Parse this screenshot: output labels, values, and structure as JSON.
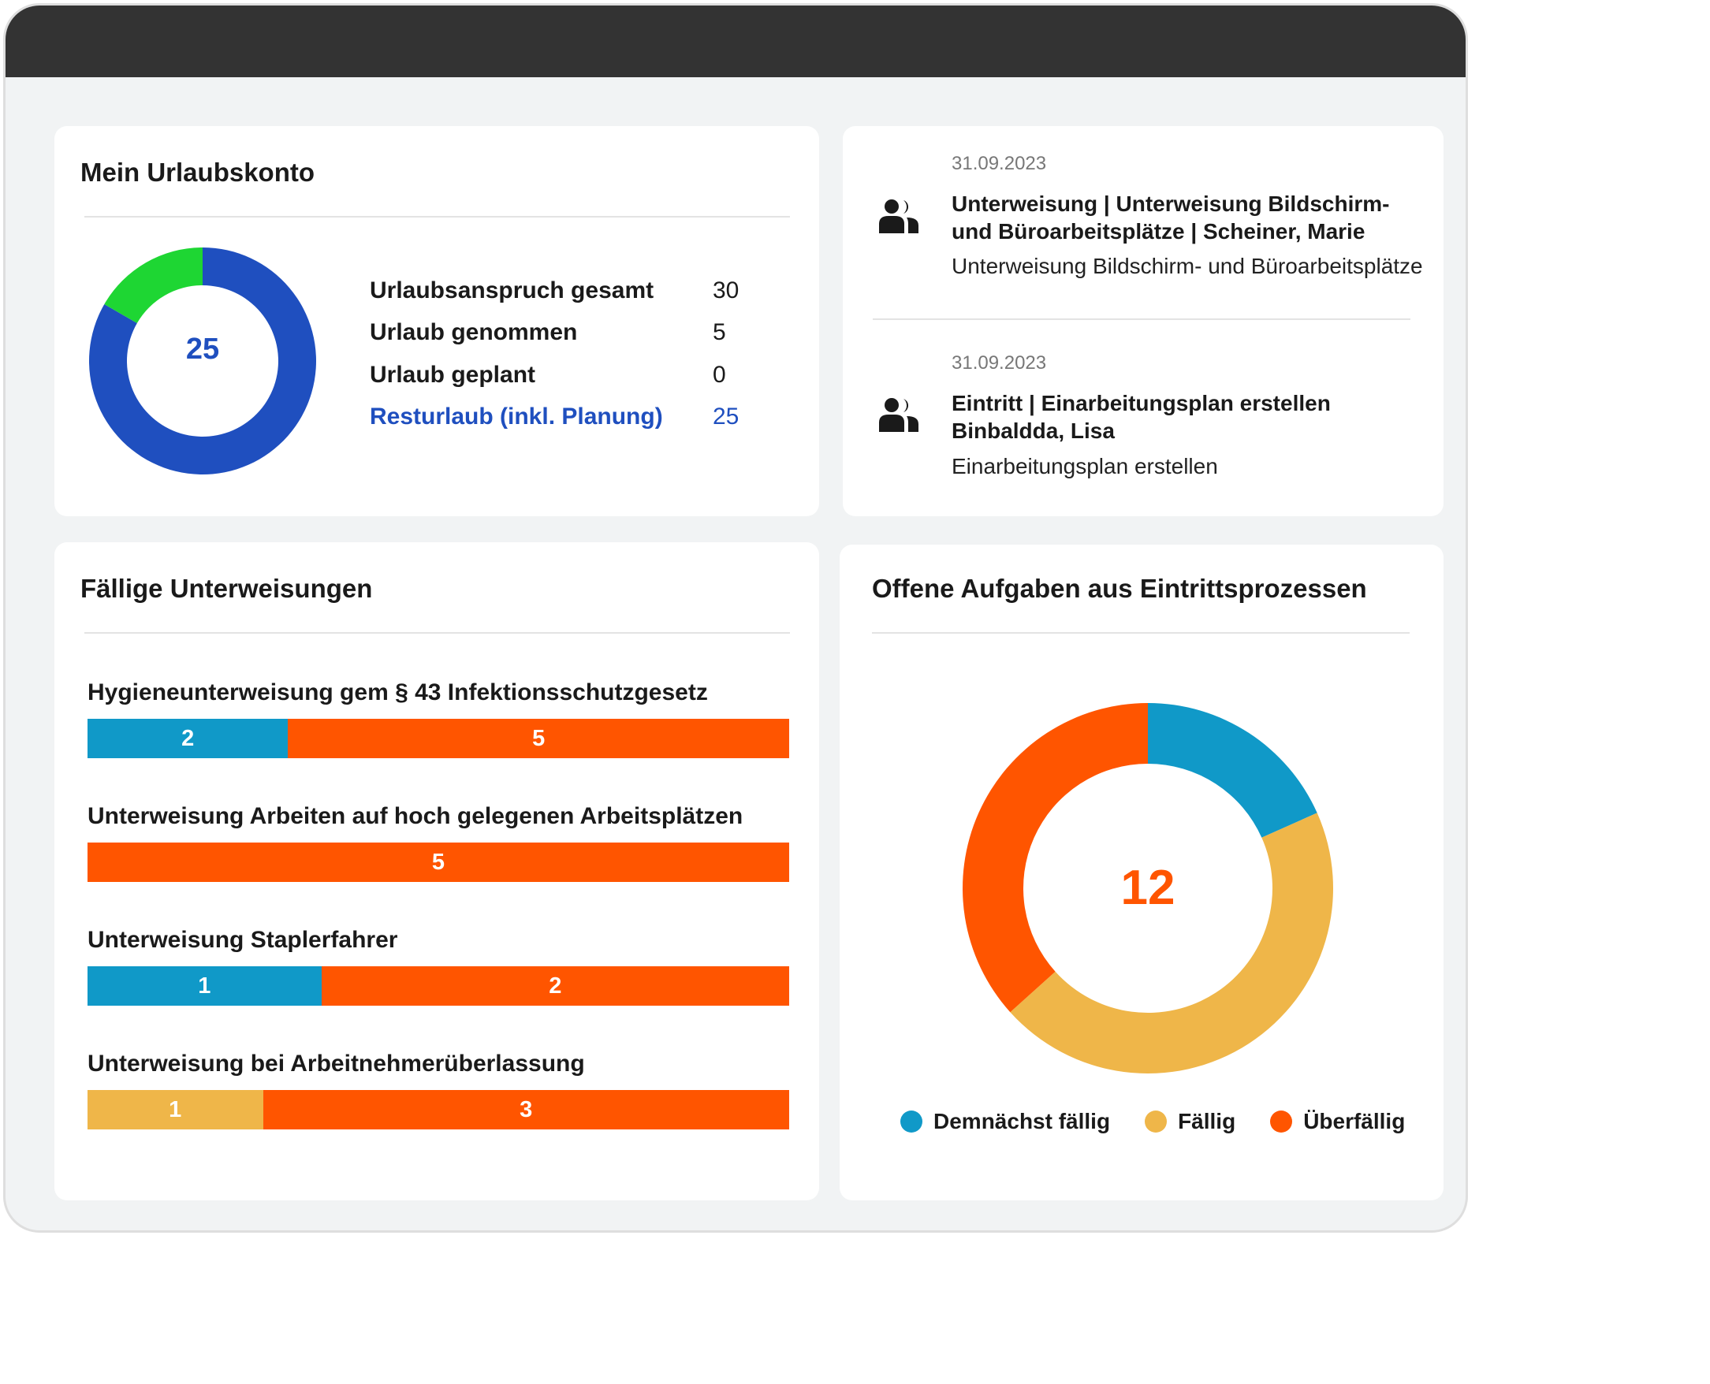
{
  "colors": {
    "vacation_remaining": "#1f4fbf",
    "vacation_taken": "#1ed633",
    "soon_due": "#1099c8",
    "due": "#efb649",
    "overdue": "#ff5500",
    "topbar": "#333333"
  },
  "vacation": {
    "title": "Mein Urlaubskonto",
    "center_value": "25",
    "rows": [
      {
        "label": "Urlaubsanspruch gesamt",
        "value": "30"
      },
      {
        "label": "Urlaub genommen",
        "value": "5"
      },
      {
        "label": "Urlaub geplant",
        "value": "0"
      },
      {
        "label": "Resturlaub (inkl. Planung)",
        "value": "25"
      }
    ]
  },
  "feed": {
    "items": [
      {
        "date": "31.09.2023",
        "title": "Unterweisung | Unterweisung Bildschirm- und Büroarbeitsplätze | Scheiner, Marie",
        "description": "Unterweisung Bildschirm- und Büroarbeitsplätze",
        "icon": "people-icon"
      },
      {
        "date": "31.09.2023",
        "title": "Eintritt | Einarbeitungsplan erstellen Binbaldda, Lisa",
        "description": "Einarbeitungsplan erstellen",
        "icon": "people-icon"
      }
    ]
  },
  "trainings": {
    "title": "Fällige Unterweisungen",
    "items": [
      {
        "label": "Hygieneunterweisung gem § 43 Infektionsschutzgesetz",
        "segments": [
          {
            "status": "soon_due",
            "value": 2
          },
          {
            "status": "overdue",
            "value": 5
          }
        ]
      },
      {
        "label": "Unterweisung Arbeiten auf hoch gelegenen Arbeitsplätzen",
        "segments": [
          {
            "status": "overdue",
            "value": 5
          }
        ]
      },
      {
        "label": "Unterweisung Staplerfahrer",
        "segments": [
          {
            "status": "soon_due",
            "value": 1
          },
          {
            "status": "overdue",
            "value": 2
          }
        ]
      },
      {
        "label": "Unterweisung bei Arbeitnehmerüberlassung",
        "segments": [
          {
            "status": "due",
            "value": 1
          },
          {
            "status": "overdue",
            "value": 3
          }
        ]
      }
    ]
  },
  "tasks": {
    "title": "Offene Aufgaben aus Eintrittsprozessen",
    "center_value": "12",
    "legend": [
      {
        "label": "Demnächst fällig",
        "status": "soon_due"
      },
      {
        "label": "Fällig",
        "status": "due"
      },
      {
        "label": "Überfällig",
        "status": "overdue"
      }
    ]
  },
  "chart_data": [
    {
      "type": "pie",
      "variant": "donut",
      "categories": [
        "Resturlaub (inkl. Planung)",
        "Urlaub genommen"
      ],
      "values": [
        25,
        5
      ],
      "center_label": "25"
    },
    {
      "type": "bar",
      "orientation": "horizontal",
      "stacked": true,
      "categories": [
        "Hygieneunterweisung gem § 43 Infektionsschutzgesetz",
        "Unterweisung Arbeiten auf hoch gelegenen Arbeitsplätzen",
        "Unterweisung Staplerfahrer",
        "Unterweisung bei Arbeitnehmerüberlassung"
      ],
      "series": [
        {
          "name": "Demnächst fällig",
          "values": [
            2,
            0,
            1,
            0
          ]
        },
        {
          "name": "Fällig",
          "values": [
            0,
            0,
            0,
            1
          ]
        },
        {
          "name": "Überfällig",
          "values": [
            5,
            5,
            2,
            3
          ]
        }
      ]
    },
    {
      "type": "pie",
      "variant": "donut",
      "categories": [
        "Demnächst fällig",
        "Fällig",
        "Überfällig"
      ],
      "values": [
        2.2,
        5.4,
        4.4
      ],
      "center_label": "12",
      "legend": "bottom"
    }
  ]
}
